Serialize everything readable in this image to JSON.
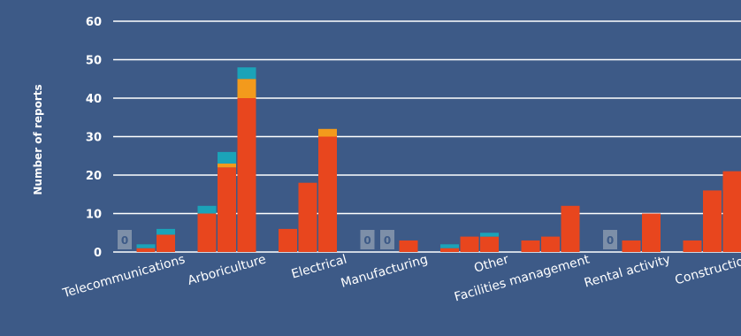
{
  "colors": {
    "background": "#3d5a87",
    "grid": "#ffffff",
    "segment_red": "#e8461e",
    "segment_orange": "#f39a1c",
    "segment_teal": "#1ba3b8",
    "zero_box": "#7d8fa8"
  },
  "chart_data": {
    "type": "bar",
    "stacked": true,
    "title": "",
    "ylabel": "Number of reports",
    "xlabel": "",
    "ylim": [
      0,
      60
    ],
    "yticks": [
      0,
      10,
      20,
      30,
      40,
      50,
      60
    ],
    "grid": true,
    "categories": [
      "Telecommunications",
      "Arboriculture",
      "Electrical",
      "Manufacturing",
      "Other",
      "Facilities management",
      "Rental activity",
      "Construction"
    ],
    "bars_per_category": 3,
    "bars": [
      [
        {
          "red": 0,
          "orange": 0,
          "teal": 0
        },
        {
          "red": 1,
          "orange": 0,
          "teal": 1
        },
        {
          "red": 4.5,
          "orange": 0,
          "teal": 1.5
        }
      ],
      [
        {
          "red": 10,
          "orange": 0,
          "teal": 2
        },
        {
          "red": 22,
          "orange": 1,
          "teal": 3
        },
        {
          "red": 40,
          "orange": 5,
          "teal": 3
        }
      ],
      [
        {
          "red": 6,
          "orange": 0,
          "teal": 0
        },
        {
          "red": 18,
          "orange": 0,
          "teal": 0
        },
        {
          "red": 30,
          "orange": 2,
          "teal": 0
        }
      ],
      [
        {
          "red": 0,
          "orange": 0,
          "teal": 0
        },
        {
          "red": 0,
          "orange": 0,
          "teal": 0
        },
        {
          "red": 3,
          "orange": 0,
          "teal": 0
        }
      ],
      [
        {
          "red": 1,
          "orange": 0,
          "teal": 1
        },
        {
          "red": 4,
          "orange": 0,
          "teal": 0
        },
        {
          "red": 4,
          "orange": 0,
          "teal": 1
        }
      ],
      [
        {
          "red": 3,
          "orange": 0,
          "teal": 0
        },
        {
          "red": 4,
          "orange": 0,
          "teal": 0
        },
        {
          "red": 12,
          "orange": 0,
          "teal": 0
        }
      ],
      [
        {
          "red": 0,
          "orange": 0,
          "teal": 0
        },
        {
          "red": 3,
          "orange": 0,
          "teal": 0
        },
        {
          "red": 10,
          "orange": 0,
          "teal": 0
        }
      ],
      [
        {
          "red": 3,
          "orange": 0,
          "teal": 0
        },
        {
          "red": 16,
          "orange": 0,
          "teal": 0
        },
        {
          "red": 21,
          "orange": 0,
          "teal": 0
        }
      ]
    ],
    "zero_markers": [
      {
        "category": 0,
        "bar": 0,
        "label": "0"
      },
      {
        "category": 3,
        "bar": 0,
        "label": "0"
      },
      {
        "category": 3,
        "bar": 1,
        "label": "0"
      },
      {
        "category": 6,
        "bar": 0,
        "label": "0"
      }
    ]
  }
}
